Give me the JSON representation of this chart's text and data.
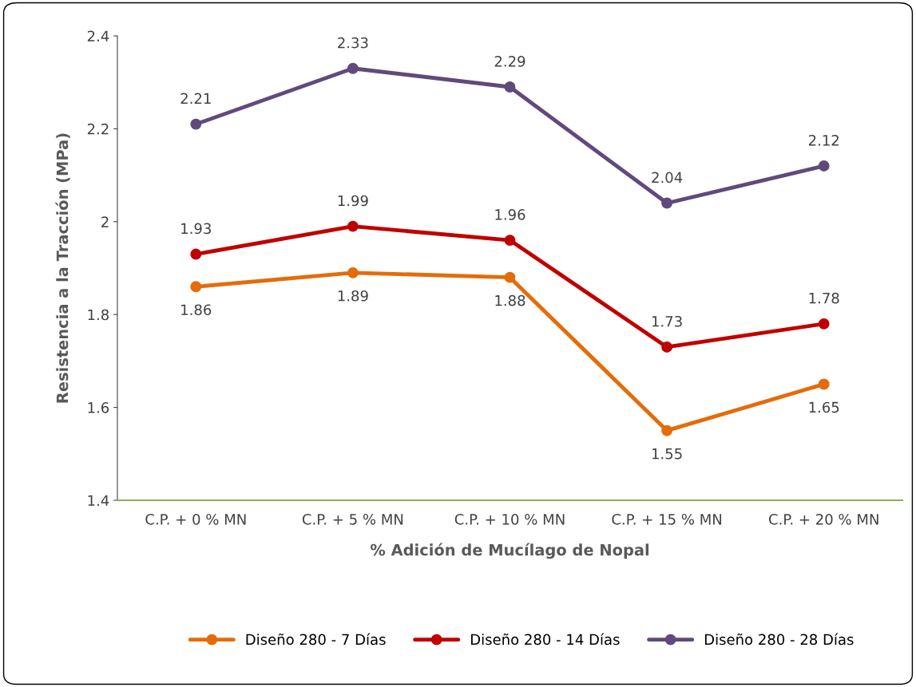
{
  "chart_data": {
    "type": "line",
    "xlabel": "% Adición de Mucílago de Nopal",
    "ylabel": "Resistencia a la Tracción (MPa)",
    "categories": [
      "C.P. + 0 % MN",
      "C.P. + 5 % MN",
      "C.P. + 10 % MN",
      "C.P. + 15 % MN",
      "C.P. + 20 % MN"
    ],
    "series": [
      {
        "name": "Diseño 280 - 7 Días",
        "color": "#e46c0a",
        "values": [
          1.86,
          1.89,
          1.88,
          1.55,
          1.65
        ]
      },
      {
        "name": "Diseño 280 - 14 Días",
        "color": "#c00000",
        "values": [
          1.93,
          1.99,
          1.96,
          1.73,
          1.78
        ]
      },
      {
        "name": "Diseño 280 - 28 Días",
        "color": "#604a7b",
        "values": [
          2.21,
          2.33,
          2.29,
          2.04,
          2.12
        ]
      }
    ],
    "ylim": [
      1.4,
      2.4
    ],
    "yticks": [
      1.4,
      1.6,
      1.8,
      2,
      2.2,
      2.4
    ],
    "data_labels": true,
    "marker": "circle",
    "line_style": "solid",
    "grid": false,
    "legend": "bottom"
  }
}
